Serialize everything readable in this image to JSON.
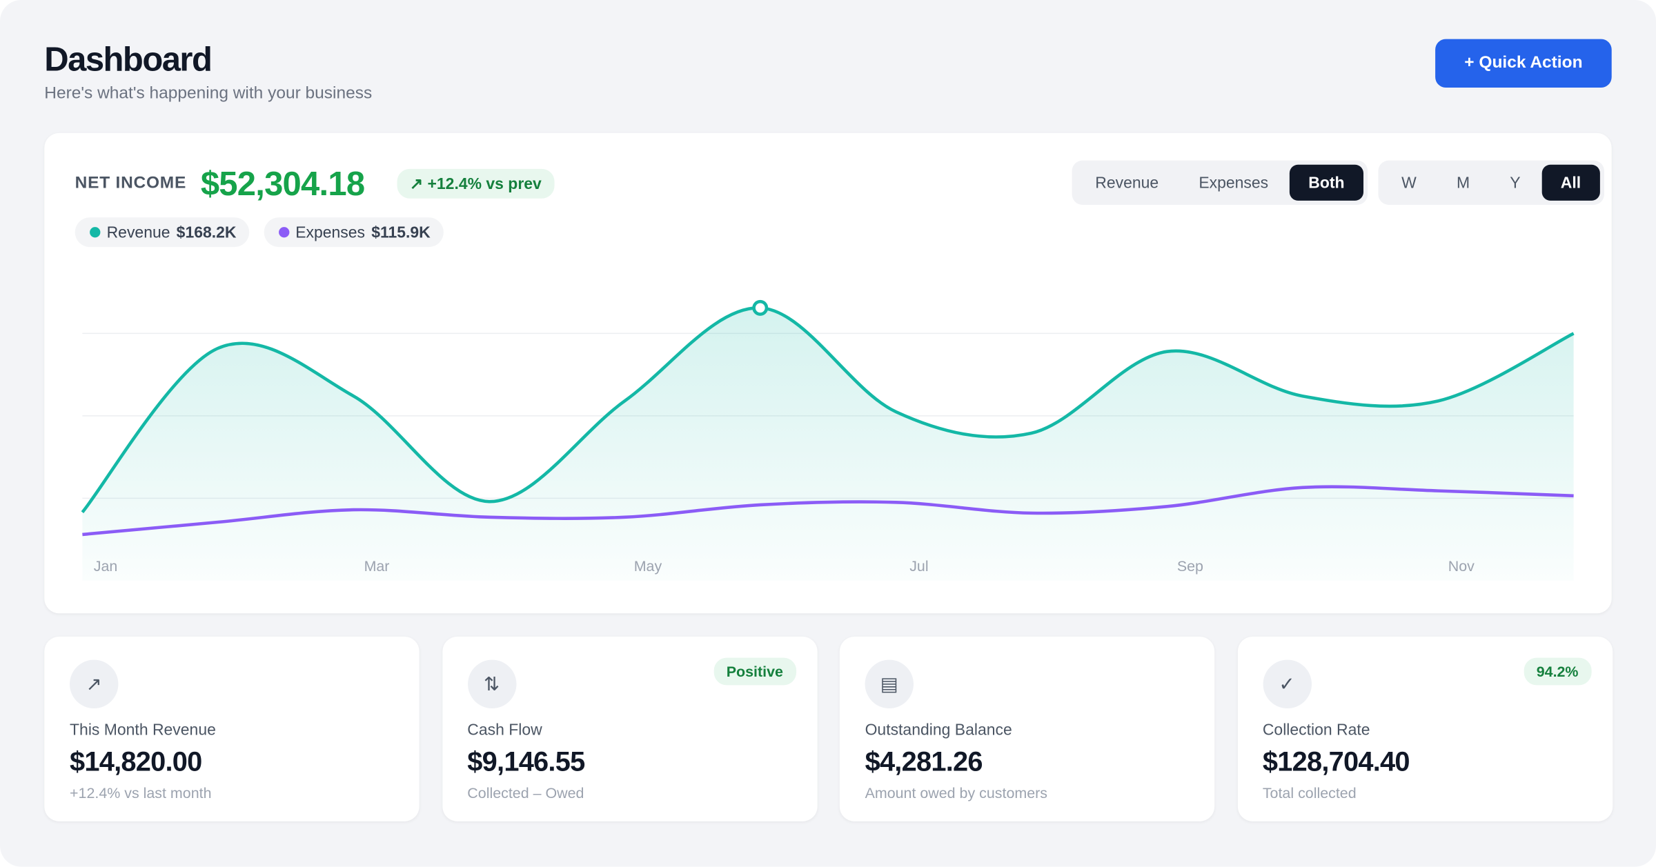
{
  "header": {
    "title": "Dashboard",
    "subtitle": "Here's what's happening with your business",
    "action": "+ Quick Action"
  },
  "summary": {
    "label": "NET INCOME",
    "value": "$52,304.18",
    "change": "↗ +12.4% vs prev",
    "legend": [
      {
        "name": "Revenue",
        "value": "$168.2K"
      },
      {
        "name": "Expenses",
        "value": "$115.9K"
      }
    ],
    "series_toggle": [
      "Revenue",
      "Expenses",
      "Both"
    ],
    "range_toggle": [
      "W",
      "M",
      "Y",
      "All"
    ]
  },
  "chart_data": {
    "type": "line",
    "categories": [
      "Jan",
      null,
      "Mar",
      null,
      "May",
      null,
      "Jul",
      null,
      "Sep",
      null,
      "Nov",
      null
    ],
    "series": [
      {
        "name": "Revenue",
        "color": "#14b8a6",
        "values": [
          8.3,
          28.2,
          22.4,
          9.6,
          21.8,
          33.1,
          20.5,
          17.9,
          27.8,
          22.4,
          21.8,
          30.0
        ]
      },
      {
        "name": "Expenses",
        "color": "#8b5cf6",
        "values": [
          5.6,
          7.1,
          8.6,
          7.7,
          7.7,
          9.2,
          9.5,
          8.2,
          9.0,
          11.3,
          10.9,
          10.3
        ]
      }
    ],
    "ylim": [
      0,
      36
    ],
    "yticks": [
      10,
      20,
      30
    ],
    "grid": true
  },
  "cards": [
    {
      "label": "This Month Revenue",
      "value": "$14,820.00",
      "note": "+12.4% vs last month"
    },
    {
      "label": "Cash Flow",
      "value": "$9,146.55",
      "note": "Collected – Owed",
      "badge": "Positive"
    },
    {
      "label": "Outstanding Balance",
      "value": "$4,281.26",
      "note": "Amount owed by customers"
    },
    {
      "label": "Collection Rate",
      "value": "$128,704.40",
      "note": "Total collected",
      "badge": "94.2%"
    }
  ]
}
